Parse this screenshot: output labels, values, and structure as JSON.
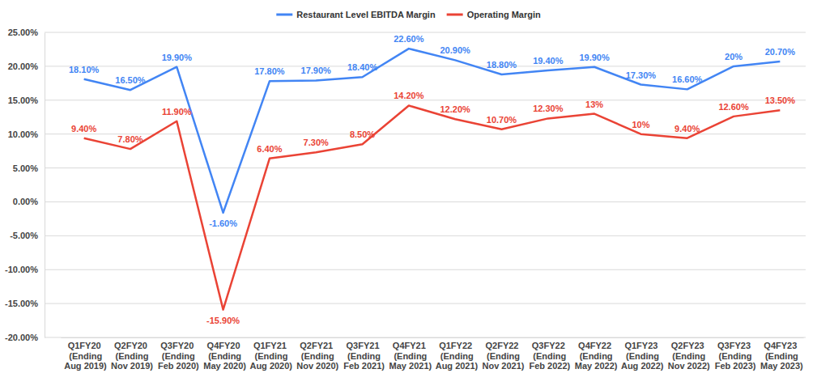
{
  "chart_data": {
    "type": "line",
    "categories": [
      "Q1FY20 (Ending Aug 2019)",
      "Q2FY20 (Ending Nov 2019)",
      "Q3FY20 (Ending Feb 2020)",
      "Q4FY20 (Ending May 2020)",
      "Q1FY21 (Ending Aug 2020)",
      "Q2FY21 (Ending Nov 2020)",
      "Q3FY21 (Ending Feb 2021)",
      "Q4FY21 (Ending May 2021)",
      "Q1FY22 (Ending Aug 2021)",
      "Q2FY22 (Ending Nov 2021)",
      "Q3FY22 (Ending Feb 2022)",
      "Q4FY22 (Ending May 2022)",
      "Q1FY23 (Ending Aug 2022)",
      "Q2FY23 (Ending Nov 2022)",
      "Q3FY23 (Ending Feb 2023)",
      "Q4FY23 (Ending May 2023)"
    ],
    "series": [
      {
        "name": "Restaurant Level EBITDA Margin",
        "color": "#4285f4",
        "values": [
          18.1,
          16.5,
          19.9,
          -1.6,
          17.8,
          17.9,
          18.4,
          22.6,
          20.9,
          18.8,
          19.4,
          19.9,
          17.3,
          16.6,
          20,
          20.7
        ],
        "value_labels": [
          "18.10%",
          "16.50%",
          "19.90%",
          "-1.60%",
          "17.80%",
          "17.90%",
          "18.40%",
          "22.60%",
          "20.90%",
          "18.80%",
          "19.40%",
          "19.90%",
          "17.30%",
          "16.60%",
          "20%",
          "20.70%"
        ]
      },
      {
        "name": "Operating Margin",
        "color": "#ea4335",
        "values": [
          9.4,
          7.8,
          11.9,
          -15.9,
          6.4,
          7.3,
          8.5,
          14.2,
          12.2,
          10.7,
          12.3,
          13,
          10,
          9.4,
          12.6,
          13.5
        ],
        "value_labels": [
          "9.40%",
          "7.80%",
          "11.90%",
          "-15.90%",
          "6.40%",
          "7.30%",
          "8.50%",
          "14.20%",
          "12.20%",
          "10.70%",
          "12.30%",
          "13%",
          "10%",
          "9.40%",
          "12.60%",
          "13.50%"
        ]
      }
    ],
    "ylim": [
      -20,
      25
    ],
    "yticks": [
      {
        "value": -20,
        "label": "-20.00%"
      },
      {
        "value": -15,
        "label": "-15.00%"
      },
      {
        "value": -10,
        "label": "-10.00%"
      },
      {
        "value": -5,
        "label": "-5.00%"
      },
      {
        "value": 0,
        "label": "0.00%"
      },
      {
        "value": 5,
        "label": "5.00%"
      },
      {
        "value": 10,
        "label": "10.00%"
      },
      {
        "value": 15,
        "label": "15.00%"
      },
      {
        "value": 20,
        "label": "20.00%"
      },
      {
        "value": 25,
        "label": "25.00%"
      }
    ],
    "grid": true,
    "legend": "top",
    "data_labels": true
  }
}
